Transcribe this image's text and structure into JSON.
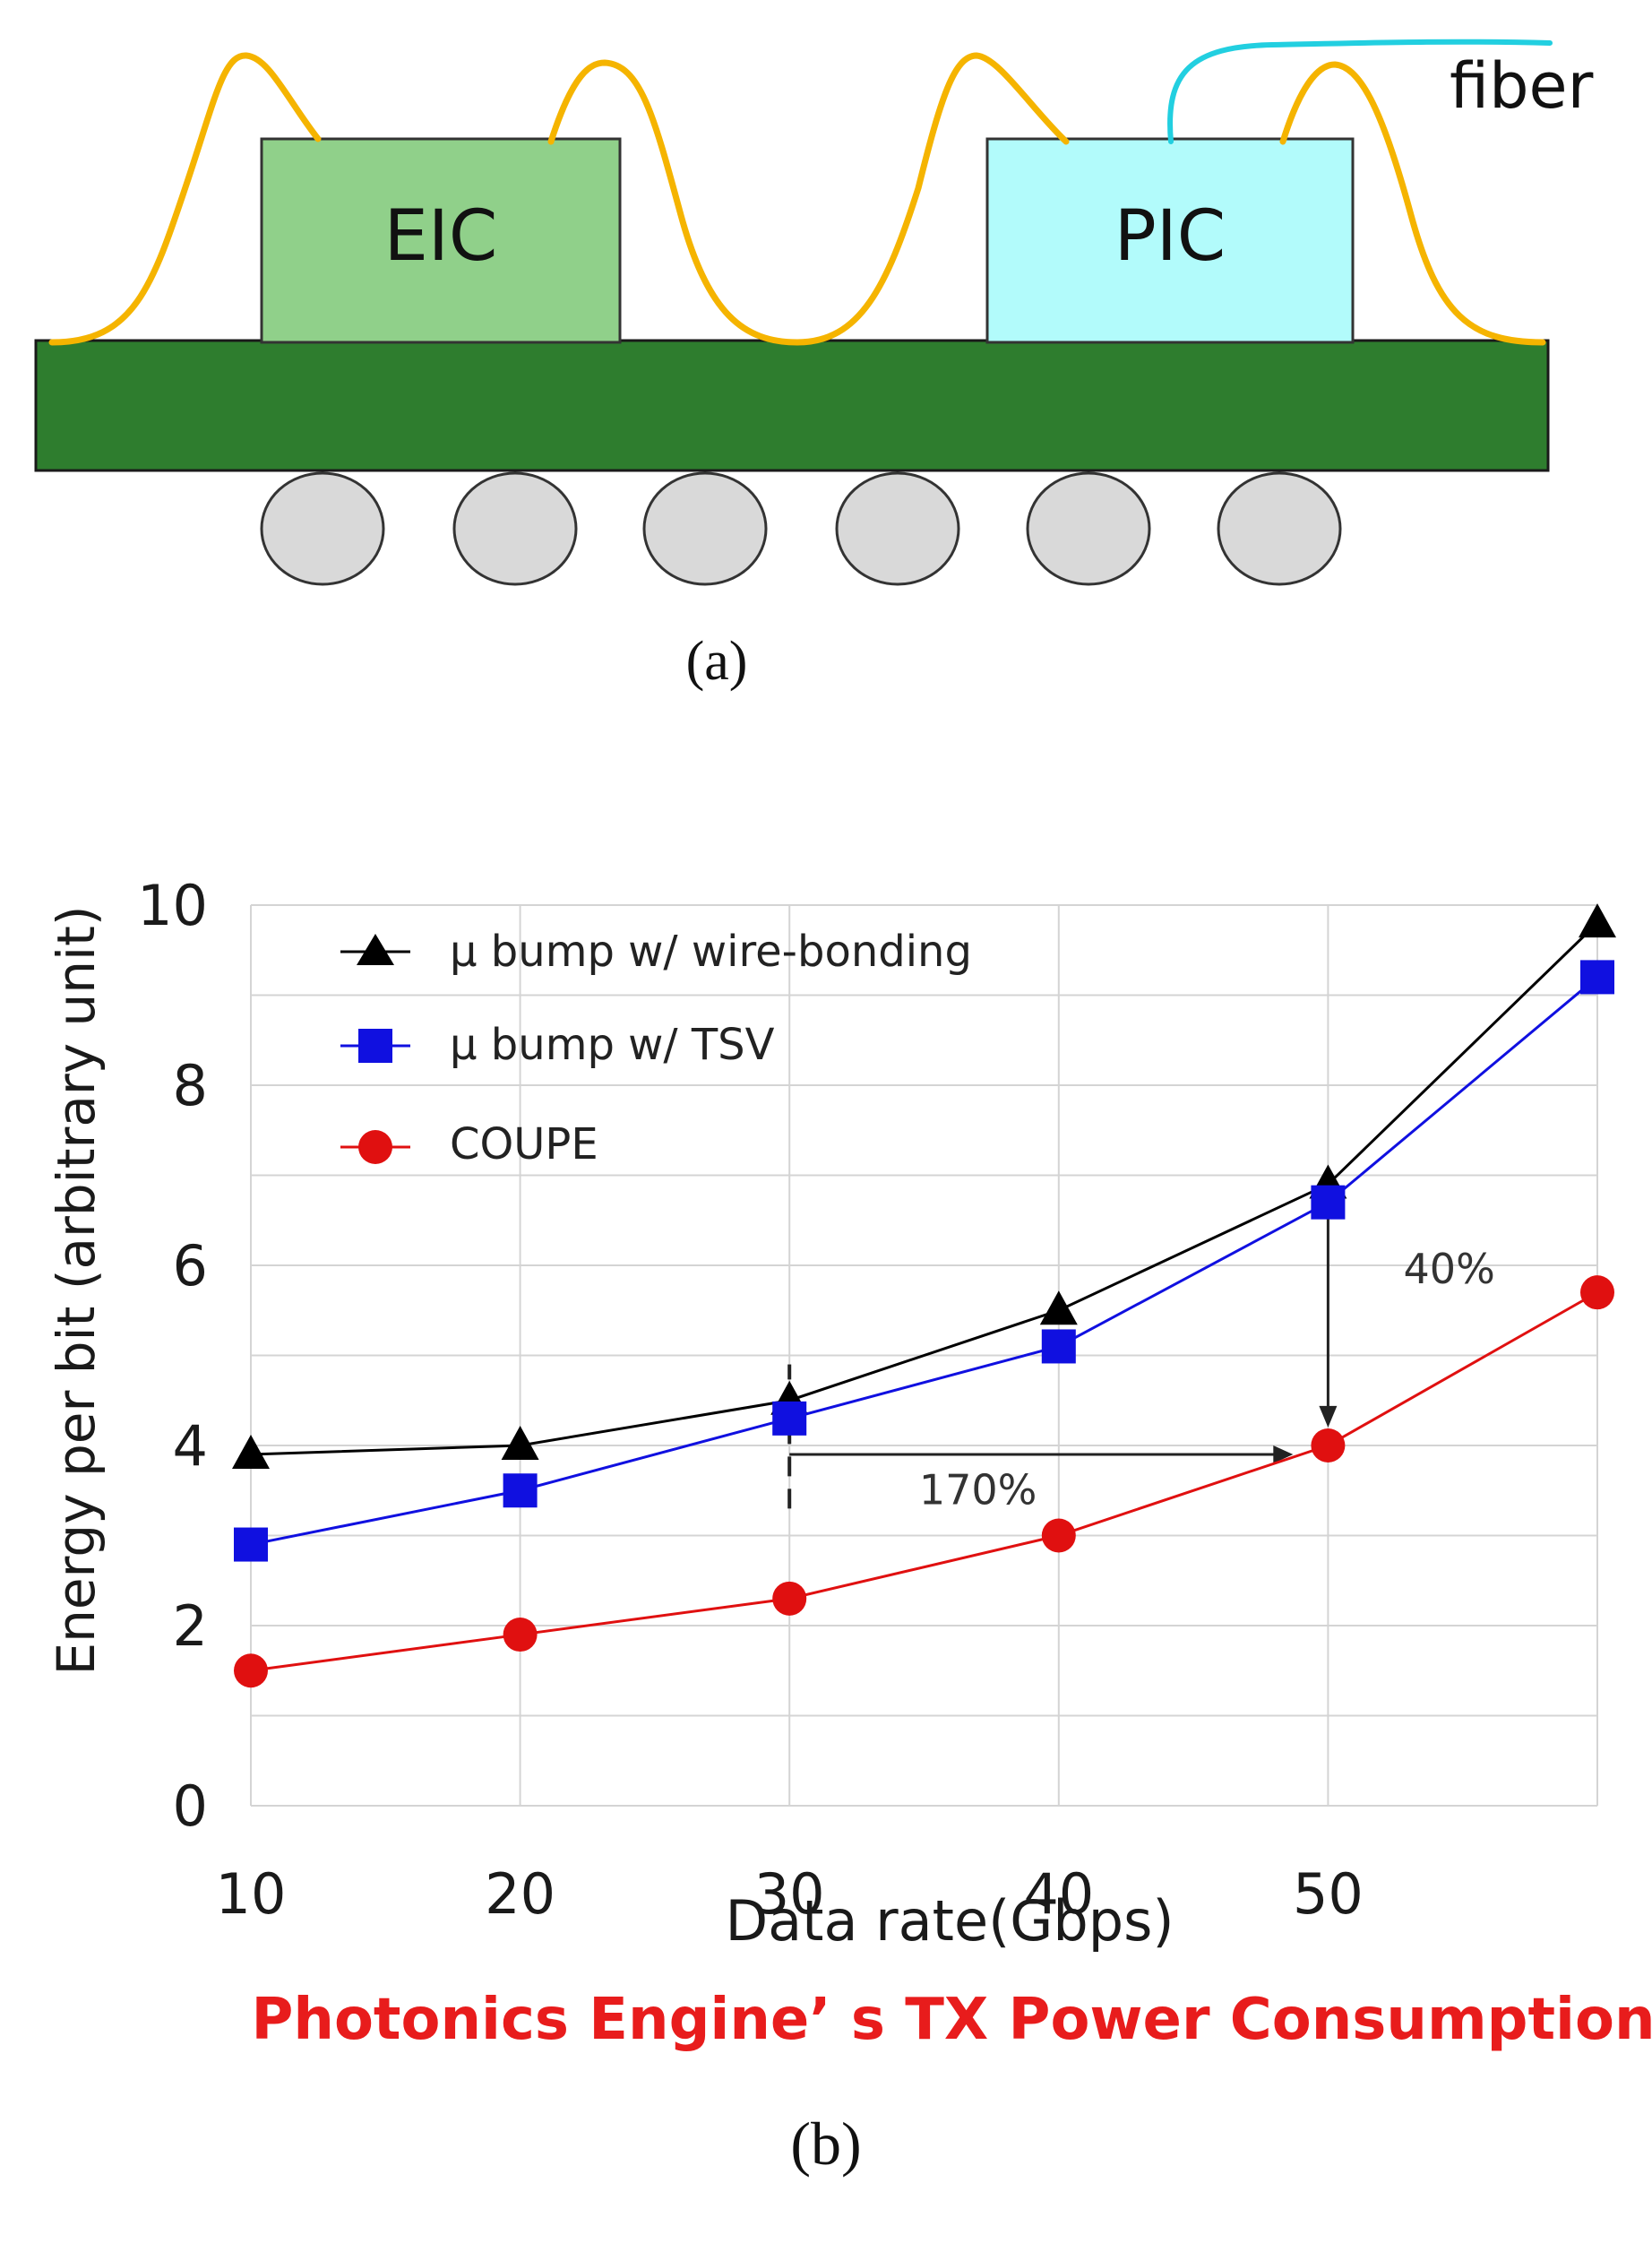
{
  "diagram": {
    "eic_label": "EIC",
    "pic_label": "PIC",
    "fiber_label": "fiber",
    "caption": "(a)",
    "colors": {
      "eic_fill": "#90d08a",
      "pic_fill": "#b2fbfb",
      "substrate": "#2e7d2e",
      "wire": "#f5b400",
      "fiber": "#22cfe0",
      "ball": "#d9d9d9"
    }
  },
  "chart_data": {
    "type": "line",
    "title": "Photonics Engine’ s TX Power Consumption",
    "xlabel": "Data rate(Gbps)",
    "ylabel": "Energy per bit (arbitrary unit)",
    "xlim": [
      10,
      60
    ],
    "ylim": [
      0,
      10
    ],
    "x_ticks": [
      "10",
      "20",
      "30",
      "40",
      "50"
    ],
    "y_ticks": [
      "0",
      "2",
      "4",
      "6",
      "8",
      "10"
    ],
    "grid": true,
    "legend_position": "top-left",
    "series": [
      {
        "name": "μ bump  w/ wire-bonding",
        "marker": "triangle",
        "color": "#000000",
        "x": [
          10,
          20,
          30,
          40,
          50,
          60
        ],
        "values": [
          3.9,
          4.0,
          4.5,
          5.5,
          6.9,
          9.8
        ]
      },
      {
        "name": "μ bump  w/ TSV",
        "marker": "square",
        "color": "#1010e0",
        "x": [
          10,
          20,
          30,
          40,
          50,
          60
        ],
        "values": [
          2.9,
          3.5,
          4.3,
          5.1,
          6.7,
          9.2
        ]
      },
      {
        "name": "COUPE",
        "marker": "circle",
        "color": "#e01010",
        "x": [
          10,
          20,
          30,
          40,
          50,
          60
        ],
        "values": [
          1.5,
          1.9,
          2.3,
          3.0,
          4.0,
          5.7
        ]
      }
    ],
    "annotations": [
      {
        "text": "40%",
        "at_x": 54.5,
        "at_y": 5.8
      },
      {
        "text": "170%",
        "at_x": 37,
        "at_y": 3.35
      }
    ],
    "arrow_vertical": {
      "x": 50,
      "from_y": 6.7,
      "to_y": 4.2
    },
    "arrow_horizontal": {
      "y": 3.9,
      "from_x": 30,
      "to_x": 48.7
    },
    "dashed_marker": {
      "x": 30,
      "from_y": 3.3,
      "to_y": 4.9
    },
    "title_color": "#e81c1c",
    "caption": "(b)"
  }
}
